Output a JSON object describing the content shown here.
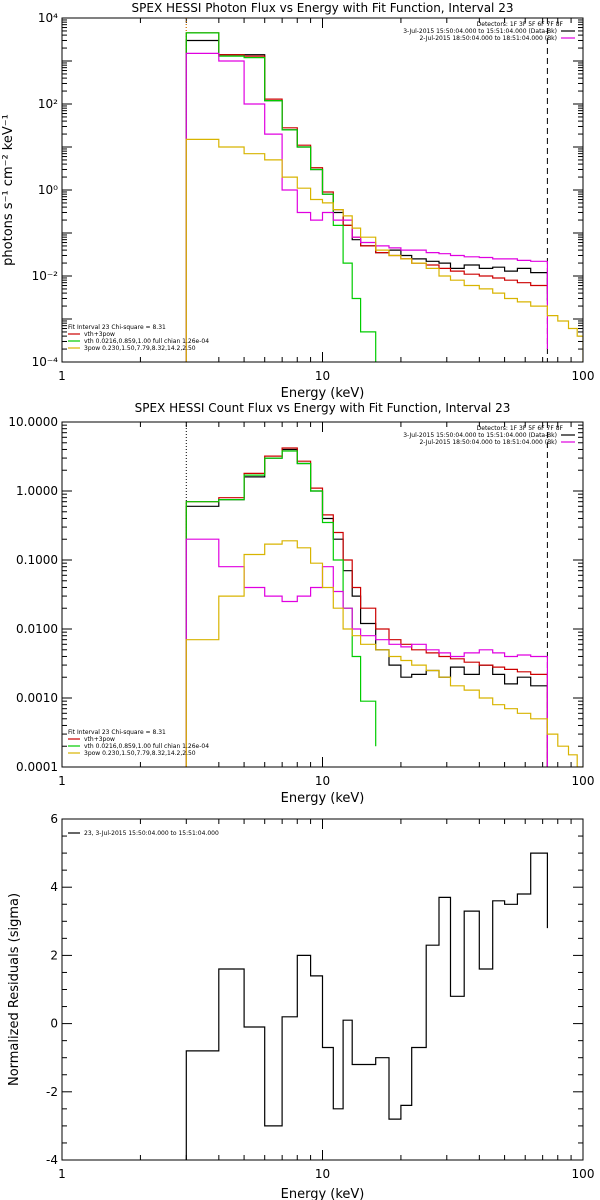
{
  "chart_data": [
    {
      "type": "line",
      "title": "SPEX HESSI Photon Flux vs Energy with Fit Function, Interval 23",
      "xlabel": "Energy (keV)",
      "ylabel": "photons s⁻¹ cm⁻² keV⁻¹",
      "xscale": "log",
      "yscale": "log",
      "xlim": [
        1,
        100
      ],
      "ylim": [
        0.0001,
        10000
      ],
      "yticks": [
        {
          "v": 0.0001,
          "label": "10⁻⁴"
        },
        {
          "v": 0.01,
          "label": "10⁻²"
        },
        {
          "v": 1,
          "label": "10⁰"
        },
        {
          "v": 100,
          "label": "10²"
        },
        {
          "v": 10000,
          "label": "10⁴"
        }
      ],
      "xticks": [
        {
          "v": 1,
          "label": "1"
        },
        {
          "v": 10,
          "label": "10"
        },
        {
          "v": 100,
          "label": "100"
        }
      ],
      "vlines": [
        {
          "x": 3,
          "style": "dotted",
          "color": "#000000"
        },
        {
          "x": 3,
          "style": "dotted",
          "color": "#ff8c00"
        },
        {
          "x": 73,
          "style": "dashed",
          "color": "#000000"
        }
      ],
      "legend_right": [
        {
          "text": "Detectors: 1F 3F 5F 6F 7F 8F",
          "color": null
        },
        {
          "text": "3-Jul-2015 15:50:04.000 to 15:51:04.000 (Data-Bk)",
          "color": "#000000"
        },
        {
          "text": "2-Jul-2015 18:50:04.000 to 18:51:04.000 (Bk)",
          "color": "#e000e0"
        }
      ],
      "legend_left": [
        {
          "text": "Fit Interval 23   Chi-square = 8.31",
          "color": null
        },
        {
          "text": "vth+3pow",
          "color": "#cc0000"
        },
        {
          "text": "vth 0.0216,0.859,1.00  full chian 1.26e-04",
          "color": "#00cc00"
        },
        {
          "text": "3pow 0.230,1.50,7.79,8.32,14.2,2.50",
          "color": "#d8b400"
        }
      ],
      "series": [
        {
          "color": "#000000",
          "edges": [
            3,
            4,
            5,
            6,
            7,
            8,
            9,
            10,
            11,
            12,
            13,
            14,
            16,
            18,
            20,
            22,
            25,
            28,
            31,
            35,
            40,
            45,
            50,
            56,
            63,
            73
          ],
          "values": [
            3000,
            1400,
            1400,
            120,
            25,
            10,
            3,
            0.8,
            0.3,
            0.15,
            0.07,
            0.05,
            0.035,
            0.04,
            0.03,
            0.025,
            0.022,
            0.02,
            0.015,
            0.018,
            0.015,
            0.016,
            0.013,
            0.015,
            0.012,
            0.0027
          ]
        },
        {
          "color": "#cc0000",
          "edges": [
            3,
            4,
            5,
            6,
            7,
            8,
            9,
            10,
            11,
            12,
            13,
            14,
            16,
            18,
            20,
            22,
            25,
            28,
            31,
            35,
            40,
            45,
            50,
            56,
            63,
            73
          ],
          "values": [
            4500,
            1400,
            1300,
            130,
            28,
            11,
            3.3,
            0.9,
            0.35,
            0.15,
            0.08,
            0.05,
            0.035,
            0.03,
            0.025,
            0.02,
            0.018,
            0.015,
            0.013,
            0.011,
            0.01,
            0.009,
            0.008,
            0.007,
            0.006,
            0.005
          ]
        },
        {
          "color": "#00cc00",
          "edges": [
            3,
            4,
            5,
            6,
            7,
            8,
            9,
            10,
            11,
            12,
            13,
            14,
            16
          ],
          "values": [
            4500,
            1300,
            1200,
            120,
            25,
            10,
            3,
            0.8,
            0.15,
            0.02,
            0.003,
            0.0005,
            0.0001
          ]
        },
        {
          "color": "#e000e0",
          "edges": [
            3,
            4,
            5,
            6,
            7,
            8,
            9,
            10,
            11,
            12,
            13,
            14,
            16,
            18,
            20,
            22,
            25,
            28,
            31,
            35,
            40,
            45,
            50,
            56,
            63,
            73
          ],
          "values": [
            1500,
            1000,
            100,
            20,
            1,
            0.3,
            0.2,
            0.3,
            0.2,
            0.2,
            0.08,
            0.06,
            0.05,
            0.045,
            0.04,
            0.04,
            0.035,
            0.033,
            0.03,
            0.028,
            0.027,
            0.025,
            0.025,
            0.023,
            0.022,
            0.0002
          ]
        },
        {
          "color": "#d8b400",
          "edges": [
            3,
            4,
            5,
            6,
            7,
            8,
            9,
            10,
            11,
            12,
            13,
            14,
            16,
            18,
            20,
            22,
            25,
            28,
            31,
            35,
            40,
            45,
            50,
            56,
            63,
            73,
            80,
            88,
            95,
            100
          ],
          "values": [
            15,
            10,
            7,
            5,
            2,
            1.1,
            0.6,
            0.5,
            0.35,
            0.25,
            0.13,
            0.08,
            0.04,
            0.03,
            0.025,
            0.02,
            0.015,
            0.01,
            0.008,
            0.006,
            0.005,
            0.004,
            0.003,
            0.0025,
            0.002,
            0.0012,
            0.0009,
            0.0006,
            0.0004
          ]
        }
      ]
    },
    {
      "type": "line",
      "title": "SPEX HESSI Count Flux vs Energy with Fit Function, Interval 23",
      "xlabel": "Energy (keV)",
      "ylabel": "",
      "xscale": "log",
      "yscale": "log",
      "xlim": [
        1,
        100
      ],
      "ylim": [
        0.0001,
        10
      ],
      "yticks": [
        {
          "v": 0.0001,
          "label": "0.0001"
        },
        {
          "v": 0.001,
          "label": "0.0010"
        },
        {
          "v": 0.01,
          "label": "0.0100"
        },
        {
          "v": 0.1,
          "label": "0.1000"
        },
        {
          "v": 1,
          "label": "1.0000"
        },
        {
          "v": 10,
          "label": "10.0000"
        }
      ],
      "xticks": [
        {
          "v": 1,
          "label": "1"
        },
        {
          "v": 10,
          "label": "10"
        },
        {
          "v": 100,
          "label": "100"
        }
      ],
      "vlines": [
        {
          "x": 3,
          "style": "dotted",
          "color": "#000000"
        },
        {
          "x": 73,
          "style": "dashed",
          "color": "#000000"
        }
      ],
      "legend_right": [
        {
          "text": "Detectors: 1F 3F 5F 6F 7F 8F",
          "color": null
        },
        {
          "text": "3-Jul-2015 15:50:04.000 to 15:51:04.000 (Data-Bk)",
          "color": "#000000"
        },
        {
          "text": "2-Jul-2015 18:50:04.000 to 18:51:04.000 (Bk)",
          "color": "#e000e0"
        }
      ],
      "legend_left": [
        {
          "text": "Fit Interval 23   Chi-square = 8.31",
          "color": null
        },
        {
          "text": "vth+3pow",
          "color": "#cc0000"
        },
        {
          "text": "vth 0.0216,0.859,1.00  full chian 1.26e-04",
          "color": "#00cc00"
        },
        {
          "text": "3pow 0.230,1.50,7.79,8.32,14.2,2.50",
          "color": "#d8b400"
        }
      ],
      "series": [
        {
          "color": "#000000",
          "edges": [
            3,
            4,
            5,
            6,
            7,
            8,
            9,
            10,
            11,
            12,
            13,
            14,
            16,
            18,
            20,
            22,
            25,
            28,
            31,
            35,
            40,
            45,
            50,
            56,
            63,
            73
          ],
          "values": [
            0.6,
            0.75,
            1.6,
            3,
            4,
            2.5,
            1,
            0.4,
            0.2,
            0.07,
            0.03,
            0.012,
            0.005,
            0.003,
            0.002,
            0.0022,
            0.0025,
            0.002,
            0.0028,
            0.0022,
            0.003,
            0.0022,
            0.0016,
            0.002,
            0.0015,
            0.0001
          ]
        },
        {
          "color": "#cc0000",
          "edges": [
            3,
            4,
            5,
            6,
            7,
            8,
            9,
            10,
            11,
            12,
            13,
            14,
            16,
            18,
            20,
            22,
            25,
            28,
            31,
            35,
            40,
            45,
            50,
            56,
            63,
            73
          ],
          "values": [
            0.7,
            0.8,
            1.8,
            3.2,
            4.2,
            2.7,
            1.1,
            0.45,
            0.25,
            0.1,
            0.04,
            0.02,
            0.01,
            0.007,
            0.006,
            0.005,
            0.0045,
            0.004,
            0.0037,
            0.0033,
            0.003,
            0.0028,
            0.0026,
            0.0024,
            0.0022,
            0.0001
          ]
        },
        {
          "color": "#00cc00",
          "edges": [
            3,
            4,
            5,
            6,
            7,
            8,
            9,
            10,
            11,
            12,
            13,
            14,
            16
          ],
          "values": [
            0.7,
            0.75,
            1.7,
            3,
            3.8,
            2.5,
            1,
            0.35,
            0.1,
            0.02,
            0.004,
            0.0009,
            0.0002
          ]
        },
        {
          "color": "#e000e0",
          "edges": [
            3,
            4,
            5,
            6,
            7,
            8,
            9,
            10,
            11,
            12,
            13,
            14,
            16,
            18,
            20,
            22,
            25,
            28,
            31,
            35,
            40,
            45,
            50,
            56,
            63,
            73
          ],
          "values": [
            0.2,
            0.08,
            0.04,
            0.03,
            0.025,
            0.03,
            0.04,
            0.08,
            0.035,
            0.02,
            0.01,
            0.008,
            0.007,
            0.006,
            0.0055,
            0.006,
            0.005,
            0.0045,
            0.004,
            0.0045,
            0.005,
            0.0045,
            0.004,
            0.0042,
            0.004,
            0.0001
          ]
        },
        {
          "color": "#d8b400",
          "edges": [
            3,
            4,
            5,
            6,
            7,
            8,
            9,
            10,
            11,
            12,
            13,
            14,
            16,
            18,
            20,
            22,
            25,
            28,
            31,
            35,
            40,
            45,
            50,
            56,
            63,
            73,
            80,
            88,
            95,
            100
          ],
          "values": [
            0.007,
            0.03,
            0.12,
            0.17,
            0.19,
            0.15,
            0.09,
            0.04,
            0.02,
            0.01,
            0.008,
            0.006,
            0.005,
            0.004,
            0.0035,
            0.003,
            0.0025,
            0.002,
            0.0015,
            0.0013,
            0.001,
            0.0008,
            0.0007,
            0.0006,
            0.0005,
            0.0003,
            0.0002,
            0.00015,
            0.0001
          ]
        }
      ]
    },
    {
      "type": "line",
      "title": "",
      "xlabel": "Energy (keV)",
      "ylabel": "Normalized Residuals (sigma)",
      "xscale": "log",
      "yscale": "linear",
      "xlim": [
        1,
        100
      ],
      "ylim": [
        -4,
        6
      ],
      "yticks": [
        {
          "v": -4,
          "label": "-4"
        },
        {
          "v": -2,
          "label": "-2"
        },
        {
          "v": 0,
          "label": "0"
        },
        {
          "v": 2,
          "label": "2"
        },
        {
          "v": 4,
          "label": "4"
        },
        {
          "v": 6,
          "label": "6"
        }
      ],
      "xticks": [
        {
          "v": 1,
          "label": "1"
        },
        {
          "v": 10,
          "label": "10"
        },
        {
          "v": 100,
          "label": "100"
        }
      ],
      "vlines": [],
      "legend_right": [],
      "legend_left": [
        {
          "text": "23,  3-Jul-2015 15:50:04.000 to 15:51:04.000",
          "color": "#000000"
        }
      ],
      "series": [
        {
          "color": "#000000",
          "edges": [
            3,
            4,
            5,
            6,
            7,
            8,
            9,
            10,
            11,
            12,
            13,
            14,
            16,
            18,
            20,
            22,
            25,
            28,
            31,
            35,
            40,
            45,
            50,
            56,
            63,
            73
          ],
          "values": [
            -0.8,
            1.6,
            -0.1,
            -3,
            0.2,
            2,
            1.4,
            -0.7,
            -2.5,
            0.1,
            -1.2,
            -1.2,
            -1,
            -2.8,
            -2.4,
            -0.7,
            2.3,
            3.7,
            0.8,
            3.3,
            1.6,
            3.6,
            3.5,
            3.8,
            5,
            2.8
          ]
        }
      ]
    }
  ]
}
